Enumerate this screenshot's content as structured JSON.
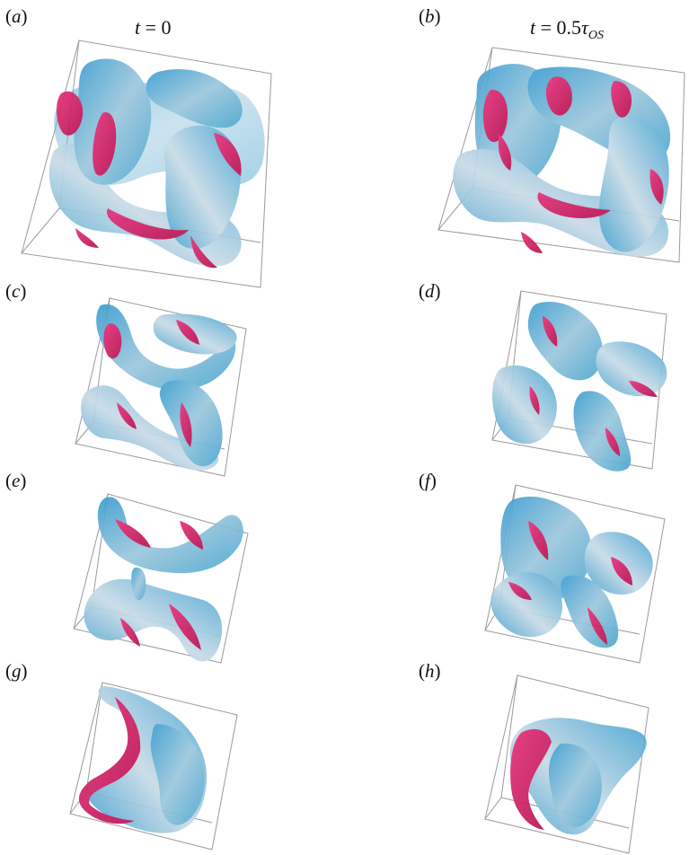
{
  "figure": {
    "column_titles": {
      "left": {
        "var": "t",
        "eq": " = 0"
      },
      "right": {
        "var": "t",
        "eq": " = 0.5",
        "tau": "τ",
        "sub": "OS"
      }
    },
    "panels": [
      {
        "id": "a",
        "label": "a"
      },
      {
        "id": "b",
        "label": "b"
      },
      {
        "id": "c",
        "label": "c"
      },
      {
        "id": "d",
        "label": "d"
      },
      {
        "id": "e",
        "label": "e"
      },
      {
        "id": "f",
        "label": "f"
      },
      {
        "id": "g",
        "label": "g"
      },
      {
        "id": "h",
        "label": "h"
      }
    ],
    "colors": {
      "surface_blue": "#4aa6cf",
      "surface_light": "#c9dbe6",
      "surface_magenta": "#d0195f",
      "box_edge": "#9a9a9a"
    }
  }
}
